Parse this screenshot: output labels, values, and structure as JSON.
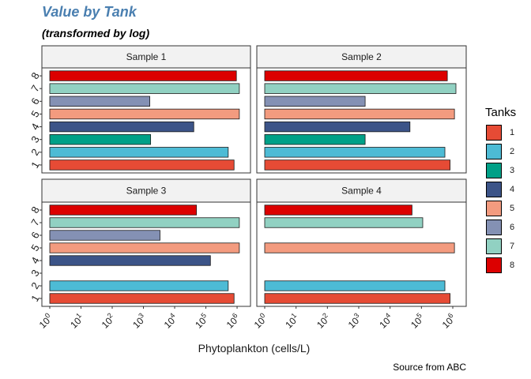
{
  "title": "Value by Tank",
  "subtitle": "(transformed by log)",
  "caption": "Source from ABC",
  "legend": {
    "title": "Tanks",
    "items": [
      {
        "label": "1",
        "color": "#e64b35"
      },
      {
        "label": "2",
        "color": "#4dbbd5"
      },
      {
        "label": "3",
        "color": "#00a087"
      },
      {
        "label": "4",
        "color": "#3c5488"
      },
      {
        "label": "5",
        "color": "#f39b7f"
      },
      {
        "label": "6",
        "color": "#8491b4"
      },
      {
        "label": "7",
        "color": "#91d1c2"
      },
      {
        "label": "8",
        "color": "#dc0000"
      }
    ]
  },
  "chart_data": {
    "type": "bar",
    "orientation": "horizontal",
    "xlabel": "Phytoplankton (cells/L)",
    "ylabel": "",
    "x_scale": "log10",
    "xlim": [
      1,
      1500000
    ],
    "x_ticks": [
      1,
      10,
      100,
      1000,
      10000,
      100000,
      1000000
    ],
    "x_tick_labels": [
      [
        "10",
        "0"
      ],
      [
        "10",
        "1"
      ],
      [
        "10",
        "2"
      ],
      [
        "10",
        "3"
      ],
      [
        "10",
        "4"
      ],
      [
        "10",
        "5"
      ],
      [
        "10",
        "6"
      ]
    ],
    "categories": [
      "1",
      "2",
      "3",
      "4",
      "5",
      "6",
      "7",
      "8"
    ],
    "colors": [
      "#e64b35",
      "#4dbbd5",
      "#00a087",
      "#3c5488",
      "#f39b7f",
      "#8491b4",
      "#91d1c2",
      "#dc0000"
    ],
    "panels": [
      {
        "name": "Sample 1",
        "values": [
          800000,
          520000,
          1700,
          41000,
          1180000,
          1600,
          1180000,
          950000
        ]
      },
      {
        "name": "Sample 2",
        "values": [
          820000,
          560000,
          1600,
          43000,
          1130000,
          1600,
          1260000,
          670000
        ]
      },
      {
        "name": "Sample 3",
        "values": [
          800000,
          520000,
          null,
          140000,
          1180000,
          3400,
          1180000,
          50000
        ]
      },
      {
        "name": "Sample 4",
        "values": [
          820000,
          560000,
          null,
          null,
          1130000,
          null,
          110000,
          50000
        ]
      }
    ]
  }
}
